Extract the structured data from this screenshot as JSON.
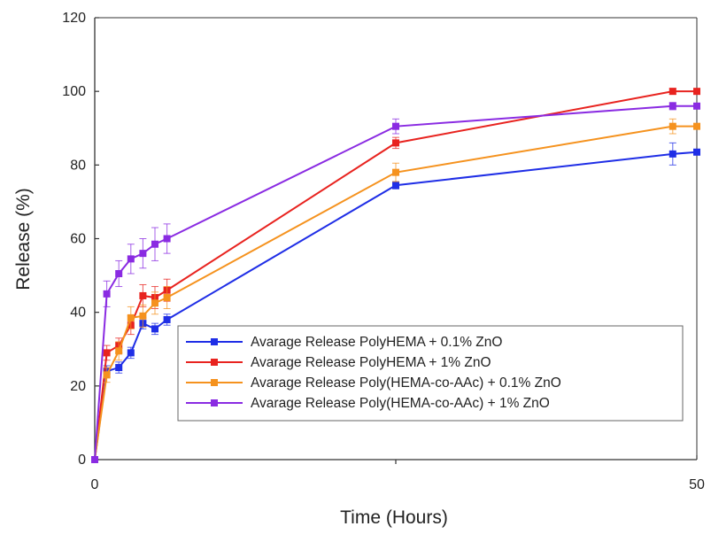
{
  "chart_data": {
    "type": "line",
    "xlabel": "Time (Hours)",
    "ylabel": "Release (%)",
    "xlim": [
      0,
      50
    ],
    "ylim": [
      0,
      120
    ],
    "x_ticks": [
      0,
      50
    ],
    "y_ticks": [
      0,
      20,
      40,
      60,
      80,
      100,
      120
    ],
    "grid": false,
    "legend_position": "lower-right",
    "x": [
      0,
      1,
      2,
      3,
      4,
      5,
      6,
      25,
      48,
      50
    ],
    "series": [
      {
        "name": "Avarage Release PolyHEMA + 0.1% ZnO",
        "color": "#1f2ee6",
        "values": [
          0,
          24,
          25,
          29,
          37,
          35.5,
          38,
          74.5,
          83,
          83.5
        ],
        "errors": [
          0,
          1.5,
          1.5,
          1.5,
          1.5,
          1.5,
          1.5,
          1,
          3,
          0
        ]
      },
      {
        "name": "Avarage Release PolyHEMA + 1% ZnO",
        "color": "#e8231f",
        "values": [
          0,
          29,
          31,
          36.5,
          44.5,
          44,
          46,
          86,
          100,
          100
        ],
        "errors": [
          0,
          2,
          2,
          2.5,
          3,
          3,
          3,
          1.5,
          0.8,
          0
        ]
      },
      {
        "name": "Avarage Release Poly(HEMA-co-AAc) + 0.1% ZnO",
        "color": "#f5921e",
        "values": [
          0,
          23,
          29.5,
          38.5,
          39,
          42.5,
          44,
          78,
          90.5,
          90.5
        ],
        "errors": [
          0,
          2,
          2.5,
          3,
          3,
          3,
          3,
          2.5,
          2,
          0
        ]
      },
      {
        "name": "Avarage Release Poly(HEMA-co-AAc) + 1% ZnO",
        "color": "#8a2be2",
        "values": [
          0,
          45,
          50.5,
          54.5,
          56,
          58.5,
          60,
          90.5,
          96,
          96
        ],
        "errors": [
          0,
          3.5,
          3.5,
          4,
          4,
          4.5,
          4,
          2,
          1,
          0
        ]
      }
    ]
  }
}
